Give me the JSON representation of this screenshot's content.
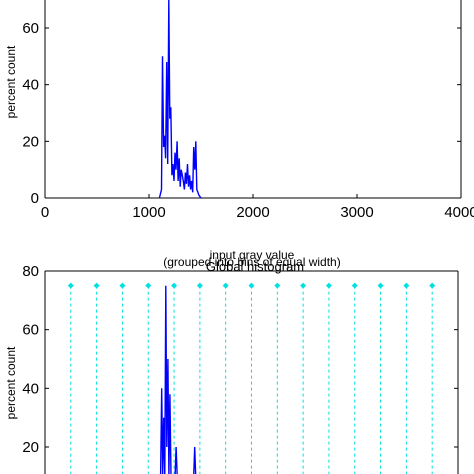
{
  "chart_data": [
    {
      "type": "line",
      "title": "",
      "xlabel": "input gray value",
      "ylabel": "percent count",
      "xlim": [
        0,
        4000
      ],
      "ylim": [
        0,
        80
      ],
      "xticks": [
        0,
        1000,
        2000,
        3000,
        4000
      ],
      "yticks": [
        0,
        20,
        40,
        60
      ],
      "grid": false,
      "color": "#0000ff",
      "series": [
        {
          "x": [
            1100,
            1120,
            1130,
            1140,
            1150,
            1160,
            1170,
            1180,
            1190,
            1200,
            1210,
            1220,
            1230,
            1240,
            1250,
            1260,
            1270,
            1280,
            1290,
            1300,
            1310,
            1320,
            1330,
            1340,
            1350,
            1360,
            1370,
            1380,
            1390,
            1400,
            1410,
            1420,
            1430,
            1440,
            1450,
            1460,
            1470,
            1480,
            1500
          ],
          "y": [
            0,
            3,
            50,
            18,
            22,
            14,
            48,
            12,
            70,
            28,
            32,
            8,
            12,
            6,
            16,
            10,
            20,
            6,
            14,
            4,
            10,
            8,
            6,
            3,
            9,
            5,
            12,
            4,
            8,
            3,
            6,
            2,
            18,
            10,
            20,
            3,
            2,
            1,
            0
          ]
        }
      ]
    },
    {
      "type": "line",
      "title": "Global histogram",
      "subtitle": "(grouped into bins of equal width)",
      "xlabel": "",
      "ylabel": "percent count",
      "xlim": [
        0,
        4000
      ],
      "ylim": [
        0,
        80
      ],
      "yticks": [
        20,
        40,
        60,
        80
      ],
      "grid": false,
      "color": "#0000ff",
      "bin_color": "#00e0e0",
      "bin_marker_level": 75,
      "bin_edges": [
        250,
        500,
        750,
        1000,
        1250,
        1500,
        1750,
        2000,
        2250,
        2500,
        2750,
        3000,
        3250,
        3500,
        3750
      ],
      "series": [
        {
          "x": [
            1100,
            1120,
            1130,
            1140,
            1150,
            1160,
            1170,
            1180,
            1190,
            1200,
            1210,
            1220,
            1230,
            1240,
            1250,
            1260,
            1270,
            1280,
            1290,
            1300,
            1310,
            1320,
            1330,
            1340,
            1350,
            1360,
            1370,
            1380,
            1390,
            1400,
            1410,
            1420,
            1430,
            1440,
            1450,
            1460,
            1470,
            1480,
            1500
          ],
          "y": [
            0,
            3,
            40,
            18,
            30,
            14,
            75,
            20,
            50,
            10,
            38,
            8,
            18,
            6,
            16,
            10,
            20,
            6,
            14,
            4,
            10,
            8,
            6,
            3,
            9,
            5,
            12,
            4,
            8,
            3,
            6,
            2,
            18,
            10,
            20,
            3,
            2,
            1,
            0
          ]
        }
      ]
    }
  ]
}
